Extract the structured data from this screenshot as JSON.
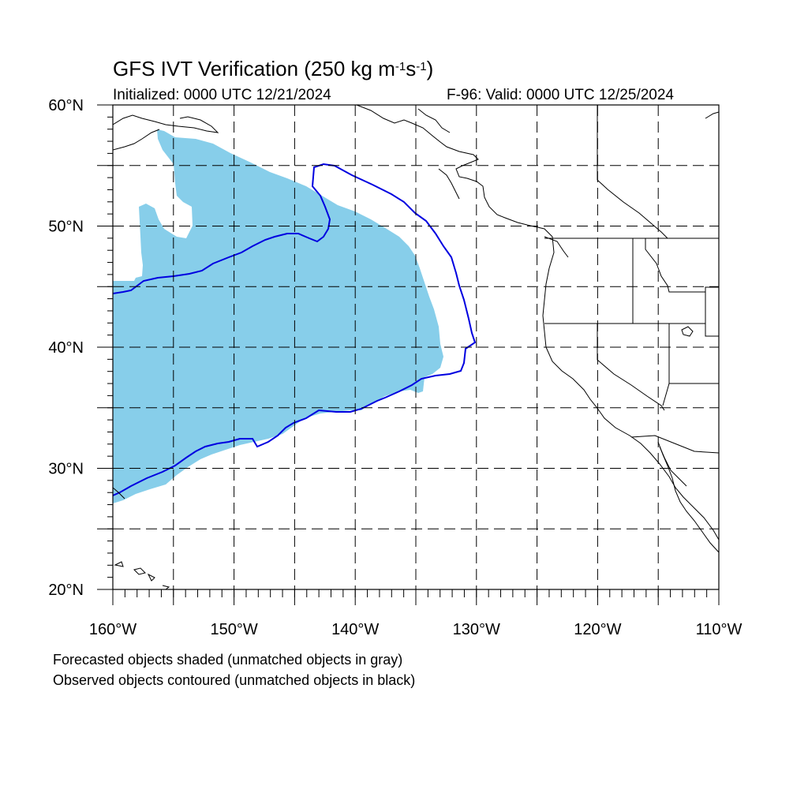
{
  "title": {
    "prefix": "GFS IVT Verification (250 kg m",
    "sup1": "-1",
    "mid": "s",
    "sup2": "-1",
    "suffix": ")"
  },
  "subtitle_left": "Initialized: 0000 UTC 12/21/2024",
  "subtitle_right": "F-96: Valid: 0000 UTC 12/25/2024",
  "map": {
    "lon_range": [
      -160,
      -110
    ],
    "lat_range": [
      20,
      60
    ],
    "lon_ticks": [
      {
        "value": -160,
        "label": "160°W"
      },
      {
        "value": -150,
        "label": "150°W"
      },
      {
        "value": -140,
        "label": "140°W"
      },
      {
        "value": -130,
        "label": "130°W"
      },
      {
        "value": -120,
        "label": "120°W"
      },
      {
        "value": -110,
        "label": "110°W"
      }
    ],
    "lat_ticks": [
      {
        "value": 60,
        "label": "60°N"
      },
      {
        "value": 50,
        "label": "50°N"
      },
      {
        "value": 40,
        "label": "40°N"
      },
      {
        "value": 30,
        "label": "30°N"
      },
      {
        "value": 20,
        "label": "20°N"
      }
    ],
    "grid_lon_step": 5,
    "grid_lat_step": 5,
    "colors": {
      "forecast_fill": "#87ceea",
      "observed_contour": "#0000e0",
      "coast": "#000000",
      "grid": "#000000"
    }
  },
  "notes": [
    "Forecasted objects shaded (unmatched objects in gray)",
    "Observed objects contoured (unmatched objects in black)"
  ]
}
